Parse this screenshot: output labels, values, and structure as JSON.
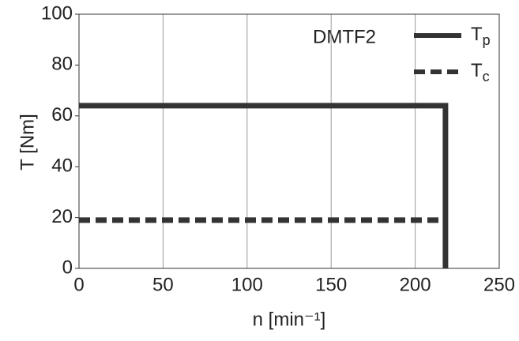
{
  "chart_data": {
    "type": "line",
    "x_label": "n [min⁻¹]",
    "y_label": "T [Nm]",
    "legend_title": "DMTF2",
    "xlim": [
      0,
      250
    ],
    "xticks": [
      0,
      50,
      100,
      150,
      200,
      250
    ],
    "ylim": [
      0,
      100
    ],
    "yticks": [
      0,
      20,
      40,
      60,
      80,
      100
    ],
    "grid": "x",
    "legend": "upper right",
    "series": [
      {
        "name": "Tp",
        "color": "#333333",
        "dash": false,
        "x": [
          0,
          218,
          218
        ],
        "values": [
          64,
          64,
          0
        ]
      },
      {
        "name": "Tc",
        "color": "#333333",
        "dash": true,
        "x": [
          0,
          218
        ],
        "values": [
          19,
          19
        ]
      }
    ]
  }
}
